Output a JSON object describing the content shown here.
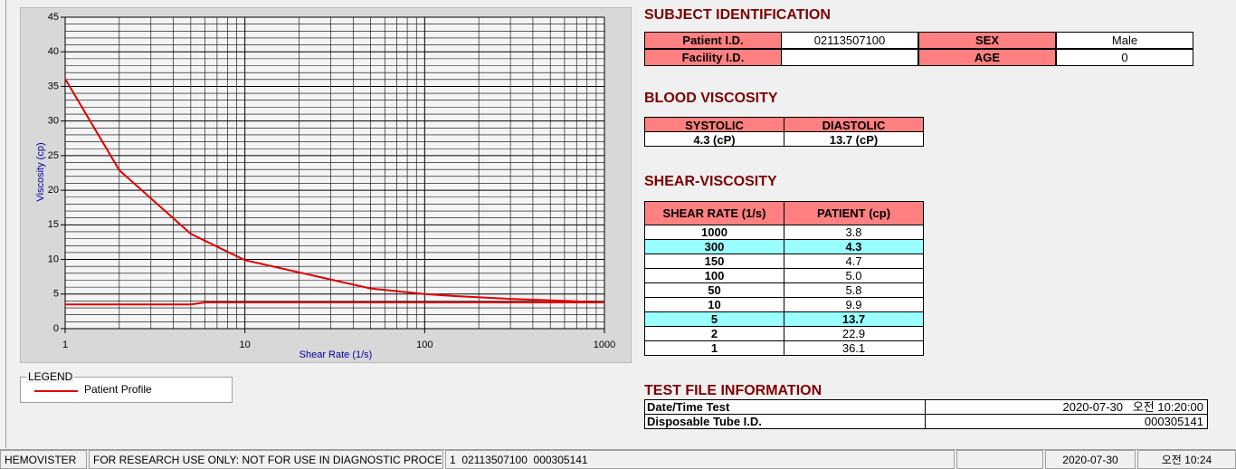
{
  "chart_data": {
    "type": "line",
    "xlabel": "Shear Rate (1/s)",
    "ylabel": "Viscosity (cp)",
    "xscale": "log",
    "xlim": [
      1,
      1000
    ],
    "ylim": [
      0,
      45
    ],
    "xticks": [
      1,
      10,
      100,
      1000
    ],
    "yticks": [
      0,
      5,
      10,
      15,
      20,
      25,
      30,
      35,
      40,
      45
    ],
    "xminor": [
      2,
      3,
      4,
      5,
      6,
      7,
      8,
      9,
      20,
      30,
      40,
      50,
      60,
      70,
      80,
      90,
      200,
      300,
      400,
      500,
      600,
      700,
      800,
      900
    ],
    "yminor": [
      1,
      2,
      3,
      4,
      6,
      7,
      8,
      9,
      11,
      12,
      13,
      14,
      16,
      17,
      18,
      19,
      21,
      22,
      23,
      24,
      26,
      27,
      28,
      29,
      31,
      32,
      33,
      34,
      36,
      37,
      38,
      39,
      41,
      42,
      43,
      44
    ],
    "grid": true,
    "series": [
      {
        "name": "Patient Profile",
        "color": "#e00000",
        "x": [
          1,
          2,
          5,
          10,
          50,
          100,
          150,
          300,
          1000
        ],
        "values": [
          36.1,
          22.9,
          13.7,
          9.9,
          5.8,
          5.0,
          4.7,
          4.3,
          3.8
        ]
      },
      {
        "color": "#e00000",
        "x": [
          1,
          5,
          6,
          1000
        ],
        "values": [
          3.5,
          3.5,
          3.8,
          3.8
        ]
      }
    ],
    "legend_title": "LEGEND"
  },
  "subject": {
    "title": "SUBJECT IDENTIFICATION",
    "fields": [
      {
        "label": "Patient I.D.",
        "value": "02113507100"
      },
      {
        "label": "SEX",
        "value": "Male"
      },
      {
        "label": "Facility I.D."
      },
      {
        "label": "AGE",
        "value": "0"
      }
    ]
  },
  "blood": {
    "title": "BLOOD VISCOSITY",
    "headers": [
      "SYSTOLIC",
      "DIASTOLIC"
    ],
    "values": [
      "4.3 (cP)",
      "13.7 (cP)"
    ]
  },
  "shear": {
    "title": "SHEAR-VISCOSITY",
    "headers": [
      "SHEAR RATE (1/s)",
      "PATIENT (cp)"
    ],
    "rows": [
      {
        "rate": "1000",
        "patient": "3.8"
      },
      {
        "rate": "300",
        "patient": "4.3",
        "highlight": true
      },
      {
        "rate": "150",
        "patient": "4.7"
      },
      {
        "rate": "100",
        "patient": "5.0"
      },
      {
        "rate": "50",
        "patient": "5.8"
      },
      {
        "rate": "10",
        "patient": "9.9"
      },
      {
        "rate": "5",
        "patient": "13.7",
        "highlight": true
      },
      {
        "rate": "2",
        "patient": "22.9"
      },
      {
        "rate": "1",
        "patient": "36.1"
      }
    ]
  },
  "test_file": {
    "title": "TEST FILE INFORMATION",
    "rows": [
      {
        "label": "Date/Time Test",
        "value": "2020-07-30   오전 10:20:00"
      },
      {
        "label": "Disposable Tube I.D.",
        "value": "000305141"
      }
    ]
  },
  "status_bar": [
    "HEMOVISTER",
    "FOR RESEARCH USE ONLY: NOT FOR USE IN DIAGNOSTIC PROCEDURES",
    "1  02113507100  000305141",
    "2020-07-30",
    "오전 10:24"
  ]
}
